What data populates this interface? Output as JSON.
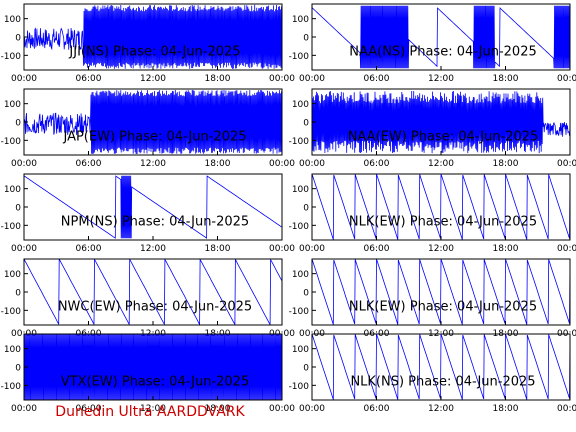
{
  "footer": "Dunedin Ultra AARDDVARK",
  "colors": {
    "trace": "#0000ff",
    "axis": "#000000",
    "footer": "#cc0000"
  },
  "chart_data": [
    {
      "type": "line",
      "title": "JJI(NS) Phase: 04-Jun-2025",
      "title_visible": "JJI(NS) Phase: 04-Jun-2025",
      "x_ticks": [
        "00:00",
        "06:00",
        "12:00",
        "18:00",
        "00:00"
      ],
      "y_ticks": [
        100,
        0,
        -100
      ],
      "ylim": [
        -180,
        180
      ],
      "xlim_hours": [
        0,
        24
      ],
      "pattern": "noise-to-solid",
      "solid_from_h": 5.5,
      "gap_from_h": 0,
      "gap_to_h": 0
    },
    {
      "type": "line",
      "title": "NAA(NS) Phase: 04-Jun-2025",
      "title_visible": "NAA(NS) Phase: 04-Jun-2025",
      "x_ticks": [
        "00:00",
        "06:00",
        "12:00",
        "18:00",
        "00:00"
      ],
      "y_ticks": [
        100,
        0,
        -100
      ],
      "ylim": [
        -180,
        180
      ],
      "xlim_hours": [
        0,
        24
      ],
      "pattern": "wrapping-with-solid-blocks"
    },
    {
      "type": "line",
      "title": "JAP(EW) Phase: 04-Jun-2025",
      "title_visible": "JAP(EW) Phase: 04-Jun-2025",
      "x_ticks": [
        "00:00",
        "06:00",
        "12:00",
        "18:00",
        "00:00"
      ],
      "y_ticks": [
        100,
        0,
        -100
      ],
      "ylim": [
        -180,
        180
      ],
      "xlim_hours": [
        0,
        24
      ],
      "pattern": "noise-to-solid",
      "solid_from_h": 6.2
    },
    {
      "type": "line",
      "title": "NAA(EW) Phase: 04-Jun-2025",
      "title_visible": "NAA(EW) Phase: 04-Jun-2025",
      "x_ticks": [
        "00:00",
        "06:00",
        "12:00",
        "18:00",
        "00:00"
      ],
      "y_ticks": [
        100,
        0,
        -100
      ],
      "ylim": [
        -180,
        180
      ],
      "xlim_hours": [
        0,
        24
      ],
      "pattern": "solid-mostly"
    },
    {
      "type": "line",
      "title": "NPM(NS) Phase: 04-Jun-2025",
      "title_visible": "NPM(NS) Phase: 04-Jun-2025",
      "x_ticks": [
        "00:00",
        "06:00",
        "12:00",
        "18:00",
        "00:00"
      ],
      "y_ticks": [
        100,
        0,
        -100
      ],
      "ylim": [
        -180,
        180
      ],
      "xlim_hours": [
        0,
        24
      ],
      "pattern": "slow-drift"
    },
    {
      "type": "line",
      "title": "NLK(EW) Phase: 04-Jun-2025",
      "title_visible": "NLK(EW) Phase: 04-Jun-2025",
      "x_ticks": [
        "00:00",
        "06:00",
        "12:00",
        "18:00",
        "00:00"
      ],
      "y_ticks": [
        100,
        0,
        -100
      ],
      "ylim": [
        -180,
        180
      ],
      "xlim_hours": [
        0,
        24
      ],
      "pattern": "fast-wrap"
    },
    {
      "type": "line",
      "title": "NWC(EW) Phase: 04-Jun-2025",
      "title_visible": "NWC(EW) Phase: 04-Jun-2025",
      "x_ticks": [
        "00:00",
        "06:00",
        "12:00",
        "18:00",
        "00:00"
      ],
      "y_ticks": [
        100,
        0,
        -100
      ],
      "ylim": [
        -180,
        180
      ],
      "xlim_hours": [
        0,
        24
      ],
      "pattern": "medium-wrap"
    },
    {
      "type": "line",
      "title": "NLK(EW) Phase: 04-Jun-2025",
      "title_visible": "NLK(EW) Phase: 04-Jun-2025",
      "x_ticks": [
        "00:00",
        "06:00",
        "12:00",
        "18:00",
        "00:00"
      ],
      "y_ticks": [
        100,
        0,
        -100
      ],
      "ylim": [
        -180,
        180
      ],
      "xlim_hours": [
        0,
        24
      ],
      "pattern": "fast-wrap"
    },
    {
      "type": "line",
      "title": "VTX(EW) Phase: 04-Jun-2025",
      "title_visible": "VTX(EW) Phase: 04-Jun-2025",
      "x_ticks": [
        "00:00",
        "06:00",
        "12:00",
        "18:00",
        "00:00"
      ],
      "y_ticks": [
        100,
        0,
        -100
      ],
      "ylim": [
        -180,
        180
      ],
      "xlim_hours": [
        0,
        24
      ],
      "pattern": "solid-full"
    },
    {
      "type": "line",
      "title": "NLK(NS) Phase: 04-Jun-2025",
      "title_visible": "NLK(NS) Phase: 04-Jun-2025",
      "x_ticks": [
        "00:00",
        "06:00",
        "12:00",
        "18:00",
        "00:00"
      ],
      "y_ticks": [
        100,
        0,
        -100
      ],
      "ylim": [
        -180,
        180
      ],
      "xlim_hours": [
        0,
        24
      ],
      "pattern": "fast-wrap"
    }
  ]
}
